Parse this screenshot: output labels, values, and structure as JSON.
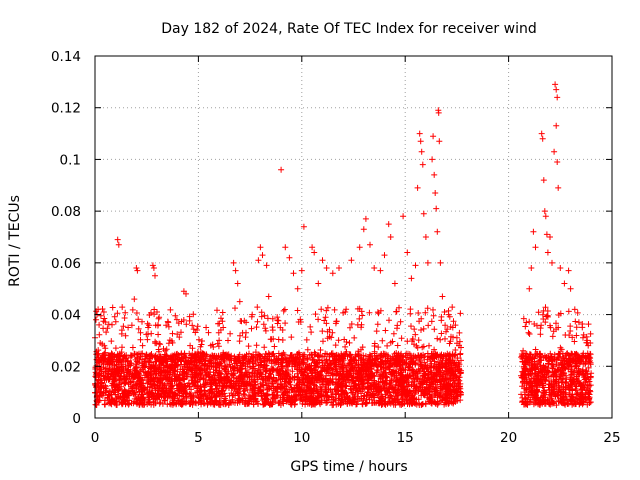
{
  "chart_data": {
    "type": "scatter",
    "title": "Day 182 of 2024, Rate Of TEC Index for receiver wind",
    "xlabel": "GPS time / hours",
    "ylabel": "ROTI / TECUs",
    "xlim": [
      0,
      25
    ],
    "ylim": [
      0,
      0.14
    ],
    "xticks": [
      0,
      5,
      10,
      15,
      20,
      25
    ],
    "yticks": [
      0,
      0.02,
      0.04,
      0.06,
      0.08,
      0.1,
      0.12,
      0.14
    ],
    "xtick_labels": [
      "0",
      "5",
      "10",
      "15",
      "20",
      "25"
    ],
    "ytick_labels": [
      "0",
      "0.02",
      "0.04",
      "0.06",
      "0.08",
      "0.1",
      "0.12",
      "0.14"
    ],
    "grid": true,
    "marker": "+",
    "color": "#ff0000",
    "series": [
      {
        "name": "ROTI",
        "description": "Dense scatter of ROTI samples; data gap between ~17.7 h and ~20.6 h",
        "segments": [
          {
            "x_range": [
              0.0,
              17.7
            ],
            "typical_range": [
              0.005,
              0.025
            ]
          },
          {
            "x_range": [
              20.6,
              24.0
            ],
            "typical_range": [
              0.005,
              0.025
            ]
          }
        ],
        "points": [
          [
            0.0,
            0.031
          ],
          [
            0.05,
            0.038
          ],
          [
            0.1,
            0.04
          ],
          [
            0.15,
            0.042
          ],
          [
            0.2,
            0.036
          ],
          [
            0.25,
            0.029
          ],
          [
            0.5,
            0.027
          ],
          [
            0.8,
            0.025
          ],
          [
            1.1,
            0.069
          ],
          [
            1.15,
            0.067
          ],
          [
            1.3,
            0.034
          ],
          [
            1.6,
            0.035
          ],
          [
            2.0,
            0.058
          ],
          [
            2.05,
            0.057
          ],
          [
            1.9,
            0.046
          ],
          [
            2.2,
            0.033
          ],
          [
            2.3,
            0.028
          ],
          [
            2.8,
            0.059
          ],
          [
            2.85,
            0.058
          ],
          [
            2.9,
            0.055
          ],
          [
            3.0,
            0.041
          ],
          [
            3.1,
            0.039
          ],
          [
            3.05,
            0.036
          ],
          [
            3.4,
            0.026
          ],
          [
            3.8,
            0.024
          ],
          [
            4.3,
            0.049
          ],
          [
            4.4,
            0.048
          ],
          [
            4.6,
            0.028
          ],
          [
            5.2,
            0.025
          ],
          [
            5.6,
            0.028
          ],
          [
            6.0,
            0.03
          ],
          [
            6.2,
            0.035
          ],
          [
            6.7,
            0.06
          ],
          [
            6.8,
            0.057
          ],
          [
            6.9,
            0.052
          ],
          [
            7.0,
            0.045
          ],
          [
            7.3,
            0.033
          ],
          [
            7.6,
            0.04
          ],
          [
            7.9,
            0.061
          ],
          [
            8.0,
            0.066
          ],
          [
            8.1,
            0.063
          ],
          [
            8.3,
            0.059
          ],
          [
            8.4,
            0.047
          ],
          [
            8.6,
            0.034
          ],
          [
            9.0,
            0.096
          ],
          [
            9.2,
            0.066
          ],
          [
            9.4,
            0.062
          ],
          [
            9.6,
            0.056
          ],
          [
            9.8,
            0.05
          ],
          [
            10.0,
            0.057
          ],
          [
            10.1,
            0.074
          ],
          [
            10.5,
            0.066
          ],
          [
            10.6,
            0.064
          ],
          [
            10.8,
            0.052
          ],
          [
            11.0,
            0.061
          ],
          [
            11.2,
            0.058
          ],
          [
            11.5,
            0.056
          ],
          [
            11.8,
            0.058
          ],
          [
            12.1,
            0.041
          ],
          [
            12.4,
            0.061
          ],
          [
            12.8,
            0.066
          ],
          [
            13.0,
            0.073
          ],
          [
            13.1,
            0.077
          ],
          [
            13.3,
            0.067
          ],
          [
            13.5,
            0.058
          ],
          [
            13.8,
            0.057
          ],
          [
            14.0,
            0.063
          ],
          [
            14.2,
            0.075
          ],
          [
            14.3,
            0.07
          ],
          [
            14.5,
            0.052
          ],
          [
            14.9,
            0.078
          ],
          [
            15.1,
            0.064
          ],
          [
            15.3,
            0.054
          ],
          [
            15.5,
            0.059
          ],
          [
            15.6,
            0.089
          ],
          [
            15.7,
            0.11
          ],
          [
            15.75,
            0.107
          ],
          [
            15.8,
            0.103
          ],
          [
            15.85,
            0.098
          ],
          [
            15.9,
            0.079
          ],
          [
            16.0,
            0.07
          ],
          [
            16.1,
            0.06
          ],
          [
            16.3,
            0.1
          ],
          [
            16.35,
            0.109
          ],
          [
            16.4,
            0.094
          ],
          [
            16.45,
            0.087
          ],
          [
            16.5,
            0.081
          ],
          [
            16.55,
            0.072
          ],
          [
            16.6,
            0.119
          ],
          [
            16.62,
            0.118
          ],
          [
            16.65,
            0.107
          ],
          [
            16.7,
            0.06
          ],
          [
            16.8,
            0.047
          ],
          [
            16.9,
            0.041
          ],
          [
            17.1,
            0.04
          ],
          [
            17.3,
            0.035
          ],
          [
            17.5,
            0.031
          ],
          [
            17.6,
            0.028
          ],
          [
            20.7,
            0.026
          ],
          [
            20.8,
            0.022
          ],
          [
            21.0,
            0.05
          ],
          [
            21.1,
            0.058
          ],
          [
            21.2,
            0.072
          ],
          [
            21.3,
            0.066
          ],
          [
            21.6,
            0.11
          ],
          [
            21.65,
            0.108
          ],
          [
            21.7,
            0.092
          ],
          [
            21.75,
            0.08
          ],
          [
            21.8,
            0.078
          ],
          [
            21.85,
            0.071
          ],
          [
            21.9,
            0.064
          ],
          [
            22.0,
            0.07
          ],
          [
            22.1,
            0.06
          ],
          [
            22.2,
            0.103
          ],
          [
            22.25,
            0.129
          ],
          [
            22.3,
            0.127
          ],
          [
            22.35,
            0.124
          ],
          [
            22.3,
            0.113
          ],
          [
            22.35,
            0.099
          ],
          [
            22.4,
            0.089
          ],
          [
            22.5,
            0.058
          ],
          [
            22.7,
            0.052
          ],
          [
            22.9,
            0.057
          ],
          [
            23.0,
            0.05
          ],
          [
            23.2,
            0.042
          ],
          [
            23.4,
            0.037
          ],
          [
            23.6,
            0.031
          ],
          [
            23.8,
            0.03
          ],
          [
            23.95,
            0.029
          ]
        ]
      }
    ]
  }
}
